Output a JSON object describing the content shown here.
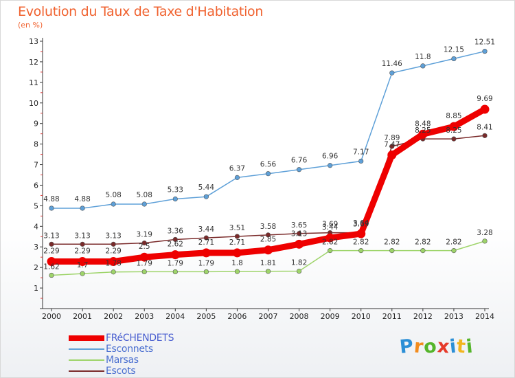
{
  "title": "Evolution du Taux de Taxe d'Habitation",
  "subtitle": "(en %)",
  "brand": {
    "letters": [
      "P",
      "r",
      "o",
      "x",
      "i",
      "t",
      "i"
    ],
    "colors": [
      "#2b8fd6",
      "#f28c1e",
      "#55b52b",
      "#e63a2a",
      "#2b8fd6",
      "#f2b51e",
      "#55b52b"
    ]
  },
  "legend": [
    "FRéCHENDETS",
    "Esconnets",
    "Marsas",
    "Escots"
  ],
  "chart_data": {
    "type": "line",
    "x": [
      "2000",
      "2001",
      "2002",
      "2003",
      "2004",
      "2005",
      "2006",
      "2007",
      "2008",
      "2009",
      "2010",
      "2011",
      "2012",
      "2013",
      "2014"
    ],
    "ylim": [
      0,
      13
    ],
    "yticks": [
      "1",
      "2",
      "3",
      "4",
      "5",
      "6",
      "7",
      "8",
      "9",
      "10",
      "11",
      "12",
      "13"
    ],
    "grid": false,
    "series": [
      {
        "name": "FRéCHENDETS",
        "color": "#ee0000",
        "values": [
          2.29,
          2.29,
          2.29,
          2.5,
          2.62,
          2.71,
          2.71,
          2.85,
          3.13,
          3.44,
          3.64,
          7.47,
          8.48,
          8.85,
          9.69
        ],
        "labels": [
          "2.29",
          "2.29",
          "2.29",
          "2.5",
          "2.62",
          "2.71",
          "2.71",
          "2.85",
          "3.13",
          "3.44",
          "3.64",
          "7.47",
          "8.48",
          "8.85",
          "9.69"
        ]
      },
      {
        "name": "Esconnets",
        "color": "#5ea0d8",
        "values": [
          4.88,
          4.88,
          5.08,
          5.08,
          5.33,
          5.44,
          6.37,
          6.56,
          6.76,
          6.96,
          7.17,
          11.46,
          11.8,
          12.15,
          12.51
        ],
        "labels": [
          "4.88",
          "4.88",
          "5.08",
          "5.08",
          "5.33",
          "5.44",
          "6.37",
          "6.56",
          "6.76",
          "6.96",
          "7.17",
          "11.46",
          "11.8",
          "12.15",
          "12.51"
        ]
      },
      {
        "name": "Marsas",
        "color": "#9ed46a",
        "values": [
          1.62,
          1.7,
          1.78,
          1.79,
          1.79,
          1.79,
          1.8,
          1.81,
          1.82,
          2.82,
          2.82,
          2.82,
          2.82,
          2.82,
          3.28
        ],
        "labels": [
          "1.62",
          "1.7",
          "1.78",
          "1.79",
          "1.79",
          "1.79",
          "1.8",
          "1.81",
          "1.82",
          "2.82",
          "2.82",
          "2.82",
          "2.82",
          "2.82",
          "3.28"
        ]
      },
      {
        "name": "Escots",
        "color": "#7a2a2a",
        "values": [
          3.13,
          3.13,
          3.13,
          3.19,
          3.36,
          3.44,
          3.51,
          3.58,
          3.65,
          3.69,
          3.69,
          7.89,
          8.25,
          8.25,
          8.41
        ],
        "labels": [
          "3.13",
          "3.13",
          "3.13",
          "3.19",
          "3.36",
          "3.44",
          "3.51",
          "3.58",
          "3.65",
          "3.69",
          "3.69",
          "7.89",
          "8.25",
          "8.25",
          "8.41"
        ]
      }
    ]
  }
}
